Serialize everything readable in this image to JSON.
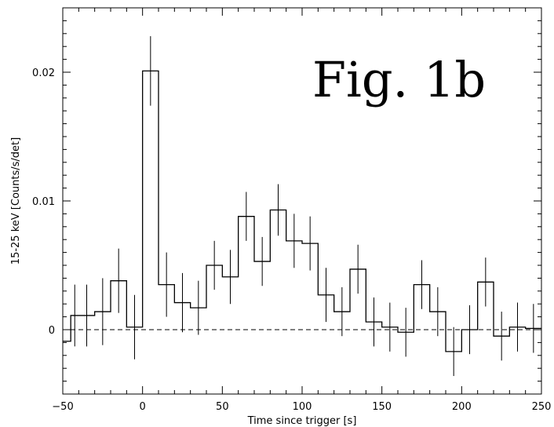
{
  "chart_data": {
    "type": "line",
    "style": "step-histogram-with-error-bars",
    "title": "Fig. 1b",
    "xlabel": "Time since trigger [s]",
    "ylabel": "15-25 keV [Counts/s/det]",
    "xlim": [
      -50,
      250
    ],
    "ylim": [
      -0.005,
      0.025
    ],
    "xticks": [
      -50,
      0,
      50,
      100,
      150,
      200,
      250
    ],
    "xtick_labels": [
      "−50",
      "0",
      "50",
      "100",
      "150",
      "200",
      "250"
    ],
    "yticks": [
      0,
      0.01,
      0.02
    ],
    "ytick_labels": [
      "0",
      "0.01",
      "0.02"
    ],
    "reference_line": {
      "y": 0,
      "style": "dashed"
    },
    "grid": false,
    "bin_edges": [
      -50,
      -45,
      -40,
      -30,
      -20,
      -10,
      0,
      10,
      20,
      30,
      40,
      50,
      60,
      70,
      80,
      90,
      100,
      110,
      120,
      130,
      140,
      150,
      160,
      170,
      180,
      190,
      200,
      210,
      220,
      230,
      240,
      250
    ],
    "values": [
      -0.0009,
      0.0011,
      0.0011,
      0.0014,
      0.0038,
      0.0002,
      0.0201,
      0.0035,
      0.0021,
      0.0017,
      0.005,
      0.0041,
      0.0088,
      0.0053,
      0.0093,
      0.0069,
      0.0067,
      0.0027,
      0.0014,
      0.0047,
      0.0006,
      0.0002,
      -0.0002,
      0.0035,
      0.0014,
      -0.0017,
      0,
      0.0037,
      -0.0005,
      0.0002,
      0.0001
    ],
    "errors": [
      0,
      0.0024,
      0.0024,
      0.0026,
      0.0025,
      0.0025,
      0.0027,
      0.0025,
      0.0023,
      0.0021,
      0.0019,
      0.0021,
      0.0019,
      0.0019,
      0.002,
      0.0021,
      0.0021,
      0.0021,
      0.0019,
      0.0019,
      0.0019,
      0.0019,
      0.0019,
      0.0019,
      0.0019,
      0.0019,
      0.0019,
      0.0019,
      0.0019,
      0.0019,
      0.0019
    ]
  }
}
